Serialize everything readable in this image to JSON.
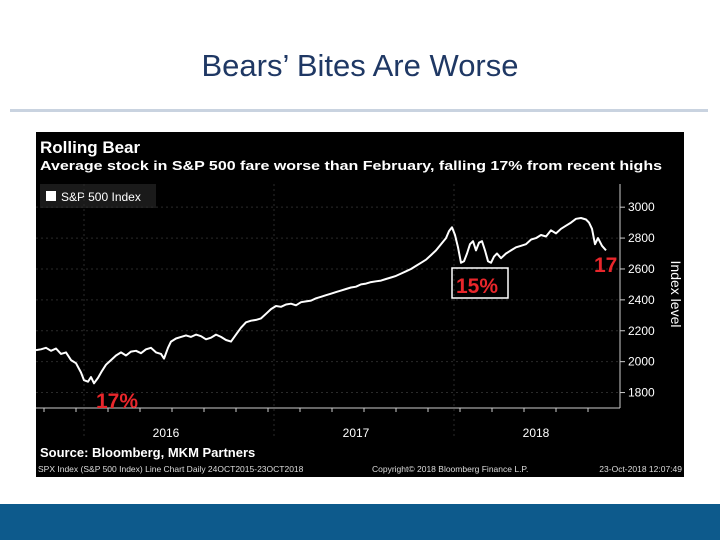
{
  "slide": {
    "title": "Bears’ Bites Are Worse"
  },
  "chart_data": {
    "type": "line",
    "title": "Rolling Bear",
    "subtitle": "Average stock in S&P 500 fare worse than February, falling 17% from recent highs",
    "legend": {
      "label": "S&P 500 Index",
      "placement": "top-left"
    },
    "ylabel": "Index level",
    "ylim": [
      1700,
      3150
    ],
    "y_ticks": [
      1800,
      2000,
      2200,
      2400,
      2600,
      2800,
      3000
    ],
    "x_ticks": [
      "2016",
      "2017",
      "2018"
    ],
    "annotations": [
      "17%",
      "15%",
      "17"
    ],
    "source": "Source: Bloomberg, MKM Partners",
    "footer_left": "SPX Index (S&P 500 Index) Line Chart Daily 24OCT2015-23OCT2018",
    "footer_mid": "Copyright© 2018 Bloomberg Finance L.P.",
    "footer_right": "23-Oct-2018 12:07:49",
    "colors": {
      "line": "#ffffff",
      "background": "#000000",
      "annotation": "#e8262b"
    },
    "series": [
      {
        "values": [
          [
            0,
            2075
          ],
          [
            5,
            2080
          ],
          [
            10,
            2090
          ],
          [
            15,
            2070
          ],
          [
            20,
            2085
          ],
          [
            25,
            2050
          ],
          [
            30,
            2060
          ],
          [
            35,
            2010
          ],
          [
            40,
            1990
          ],
          [
            45,
            1930
          ],
          [
            48,
            1880
          ],
          [
            52,
            1870
          ],
          [
            55,
            1900
          ],
          [
            58,
            1860
          ],
          [
            62,
            1895
          ],
          [
            66,
            1940
          ],
          [
            70,
            1980
          ],
          [
            75,
            2010
          ],
          [
            80,
            2040
          ],
          [
            85,
            2060
          ],
          [
            90,
            2040
          ],
          [
            95,
            2065
          ],
          [
            100,
            2070
          ],
          [
            105,
            2055
          ],
          [
            110,
            2080
          ],
          [
            115,
            2090
          ],
          [
            120,
            2060
          ],
          [
            125,
            2050
          ],
          [
            128,
            2020
          ],
          [
            132,
            2090
          ],
          [
            135,
            2130
          ],
          [
            140,
            2150
          ],
          [
            145,
            2160
          ],
          [
            150,
            2170
          ],
          [
            155,
            2160
          ],
          [
            160,
            2175
          ],
          [
            165,
            2165
          ],
          [
            170,
            2145
          ],
          [
            175,
            2155
          ],
          [
            180,
            2175
          ],
          [
            185,
            2160
          ],
          [
            190,
            2140
          ],
          [
            195,
            2130
          ],
          [
            200,
            2175
          ],
          [
            205,
            2220
          ],
          [
            210,
            2255
          ],
          [
            215,
            2265
          ],
          [
            220,
            2270
          ],
          [
            225,
            2280
          ],
          [
            230,
            2310
          ],
          [
            235,
            2340
          ],
          [
            240,
            2360
          ],
          [
            245,
            2355
          ],
          [
            250,
            2370
          ],
          [
            255,
            2375
          ],
          [
            260,
            2365
          ],
          [
            265,
            2385
          ],
          [
            270,
            2390
          ],
          [
            275,
            2395
          ],
          [
            280,
            2410
          ],
          [
            285,
            2420
          ],
          [
            290,
            2430
          ],
          [
            295,
            2440
          ],
          [
            300,
            2450
          ],
          [
            305,
            2460
          ],
          [
            310,
            2470
          ],
          [
            315,
            2480
          ],
          [
            320,
            2485
          ],
          [
            325,
            2500
          ],
          [
            330,
            2505
          ],
          [
            335,
            2515
          ],
          [
            340,
            2520
          ],
          [
            345,
            2525
          ],
          [
            350,
            2535
          ],
          [
            355,
            2545
          ],
          [
            360,
            2555
          ],
          [
            365,
            2570
          ],
          [
            370,
            2585
          ],
          [
            375,
            2600
          ],
          [
            380,
            2620
          ],
          [
            385,
            2640
          ],
          [
            390,
            2660
          ],
          [
            395,
            2690
          ],
          [
            400,
            2720
          ],
          [
            405,
            2760
          ],
          [
            410,
            2800
          ],
          [
            413,
            2845
          ],
          [
            416,
            2870
          ],
          [
            419,
            2820
          ],
          [
            422,
            2740
          ],
          [
            425,
            2640
          ],
          [
            428,
            2650
          ],
          [
            431,
            2700
          ],
          [
            434,
            2760
          ],
          [
            437,
            2780
          ],
          [
            440,
            2720
          ],
          [
            443,
            2770
          ],
          [
            446,
            2780
          ],
          [
            449,
            2720
          ],
          [
            452,
            2650
          ],
          [
            455,
            2640
          ],
          [
            458,
            2680
          ],
          [
            461,
            2700
          ],
          [
            465,
            2670
          ],
          [
            470,
            2700
          ],
          [
            475,
            2720
          ],
          [
            480,
            2740
          ],
          [
            485,
            2750
          ],
          [
            490,
            2760
          ],
          [
            495,
            2790
          ],
          [
            500,
            2800
          ],
          [
            505,
            2820
          ],
          [
            510,
            2810
          ],
          [
            515,
            2850
          ],
          [
            520,
            2830
          ],
          [
            525,
            2860
          ],
          [
            530,
            2880
          ],
          [
            535,
            2900
          ],
          [
            540,
            2925
          ],
          [
            545,
            2930
          ],
          [
            550,
            2920
          ],
          [
            553,
            2900
          ],
          [
            556,
            2860
          ],
          [
            559,
            2760
          ],
          [
            562,
            2800
          ],
          [
            566,
            2750
          ],
          [
            570,
            2720
          ]
        ]
      }
    ]
  }
}
